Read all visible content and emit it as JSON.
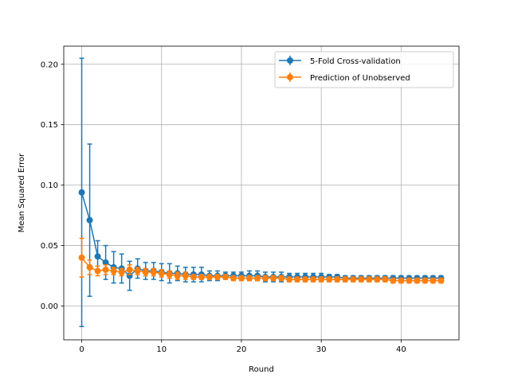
{
  "chart_data": {
    "type": "line",
    "xlabel": "Round",
    "ylabel": "Mean Squared Error",
    "xlim": [
      -2.25,
      47.25
    ],
    "ylim": [
      -0.028,
      0.215
    ],
    "xticks": [
      0,
      10,
      20,
      30,
      40
    ],
    "xtick_labels": [
      "0",
      "10",
      "20",
      "30",
      "40"
    ],
    "yticks": [
      0.0,
      0.05,
      0.1,
      0.15,
      0.2
    ],
    "ytick_labels": [
      "0.00",
      "0.05",
      "0.10",
      "0.15",
      "0.20"
    ],
    "grid": true,
    "legend_position": "top-right",
    "x": [
      0,
      1,
      2,
      3,
      4,
      5,
      6,
      7,
      8,
      9,
      10,
      11,
      12,
      13,
      14,
      15,
      16,
      17,
      18,
      19,
      20,
      21,
      22,
      23,
      24,
      25,
      26,
      27,
      28,
      29,
      30,
      31,
      32,
      33,
      34,
      35,
      36,
      37,
      38,
      39,
      40,
      41,
      42,
      43,
      44,
      45
    ],
    "series": [
      {
        "name": "5-Fold Cross-validation",
        "color": "#1f77b4",
        "values": [
          0.094,
          0.071,
          0.041,
          0.036,
          0.032,
          0.031,
          0.025,
          0.031,
          0.029,
          0.029,
          0.028,
          0.027,
          0.027,
          0.026,
          0.026,
          0.026,
          0.025,
          0.025,
          0.025,
          0.025,
          0.025,
          0.025,
          0.025,
          0.024,
          0.024,
          0.024,
          0.024,
          0.024,
          0.024,
          0.024,
          0.024,
          0.024,
          0.024,
          0.023,
          0.023,
          0.023,
          0.023,
          0.023,
          0.023,
          0.023,
          0.023,
          0.023,
          0.023,
          0.023,
          0.023,
          0.023
        ],
        "errors": [
          0.111,
          0.063,
          0.013,
          0.014,
          0.013,
          0.012,
          0.012,
          0.008,
          0.007,
          0.007,
          0.007,
          0.008,
          0.006,
          0.006,
          0.006,
          0.006,
          0.004,
          0.004,
          0.003,
          0.003,
          0.003,
          0.004,
          0.004,
          0.004,
          0.004,
          0.004,
          0.003,
          0.003,
          0.003,
          0.003,
          0.003,
          0.002,
          0.002,
          0.002,
          0.002,
          0.002,
          0.002,
          0.002,
          0.002,
          0.002,
          0.002,
          0.002,
          0.002,
          0.002,
          0.002,
          0.002
        ]
      },
      {
        "name": "Prediction of Unobserved",
        "color": "#ff7f0e",
        "values": [
          0.04,
          0.032,
          0.029,
          0.03,
          0.029,
          0.028,
          0.03,
          0.029,
          0.028,
          0.028,
          0.027,
          0.026,
          0.025,
          0.025,
          0.024,
          0.024,
          0.024,
          0.024,
          0.024,
          0.023,
          0.023,
          0.023,
          0.023,
          0.023,
          0.023,
          0.023,
          0.022,
          0.022,
          0.022,
          0.022,
          0.022,
          0.022,
          0.022,
          0.022,
          0.022,
          0.022,
          0.022,
          0.022,
          0.022,
          0.021,
          0.021,
          0.021,
          0.021,
          0.021,
          0.021,
          0.021
        ],
        "errors": [
          0.016,
          0.006,
          0.004,
          0.004,
          0.003,
          0.003,
          0.004,
          0.003,
          0.003,
          0.003,
          0.003,
          0.003,
          0.003,
          0.003,
          0.002,
          0.002,
          0.002,
          0.002,
          0.002,
          0.002,
          0.002,
          0.002,
          0.002,
          0.002,
          0.002,
          0.002,
          0.002,
          0.002,
          0.002,
          0.002,
          0.002,
          0.002,
          0.002,
          0.002,
          0.002,
          0.002,
          0.002,
          0.002,
          0.002,
          0.002,
          0.002,
          0.002,
          0.002,
          0.002,
          0.002,
          0.002
        ]
      }
    ]
  }
}
